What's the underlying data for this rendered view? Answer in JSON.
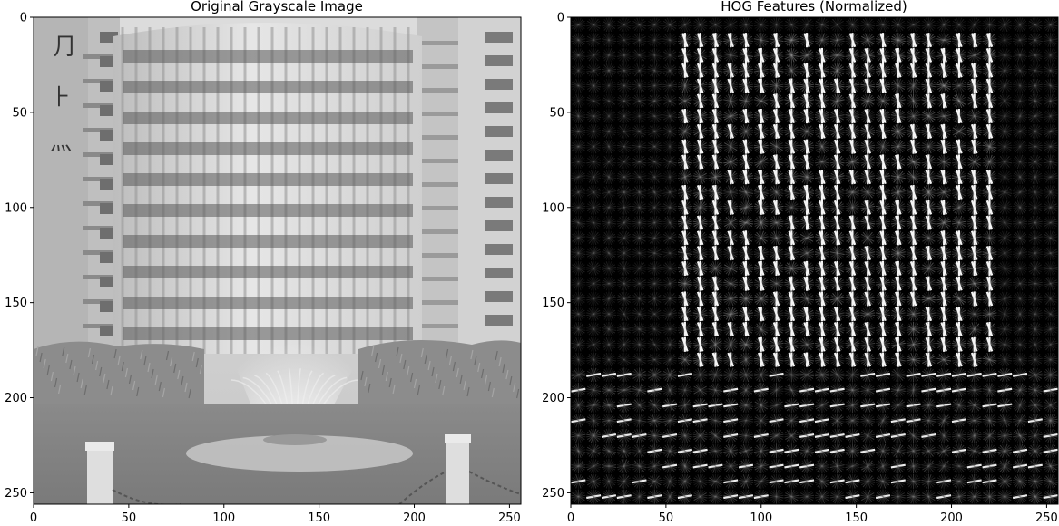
{
  "panels": [
    {
      "title": "Original Grayscale Image",
      "x_ticks": [
        "0",
        "50",
        "100",
        "150",
        "200",
        "250"
      ],
      "y_ticks": [
        "0",
        "50",
        "100",
        "150",
        "200",
        "250"
      ],
      "x_tick_values": [
        0,
        50,
        100,
        150,
        200,
        250
      ],
      "y_tick_values": [
        0,
        50,
        100,
        150,
        200,
        250
      ],
      "extent": 256
    },
    {
      "title": "HOG Features (Normalized)",
      "x_ticks": [
        "0",
        "50",
        "100",
        "150",
        "200",
        "250"
      ],
      "y_ticks": [
        "0",
        "50",
        "100",
        "150",
        "200",
        "250"
      ],
      "x_tick_values": [
        0,
        50,
        100,
        150,
        200,
        250
      ],
      "y_tick_values": [
        0,
        50,
        100,
        150,
        200,
        250
      ],
      "extent": 256
    }
  ],
  "colors": {
    "background": "#ffffff",
    "hog_bg": "#000000",
    "axis": "#000000"
  }
}
